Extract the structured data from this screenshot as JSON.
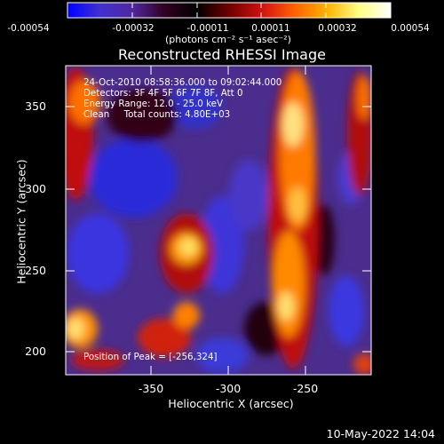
{
  "colorbar": {
    "ticks": [
      "-0.00054",
      "-0.00032",
      "-0.00011",
      "0.00011",
      "0.00032",
      "0.00054"
    ],
    "units": "(photons cm⁻² s⁻¹ asec⁻²)",
    "colors": [
      "#0000ff",
      "#4030d0",
      "#5028a0",
      "#300020",
      "#000000",
      "#700000",
      "#d01010",
      "#ff6000",
      "#ffb000",
      "#ffff80",
      "#ffffff"
    ]
  },
  "image": {
    "title": "Reconstructed RHESSI Image",
    "annotations": [
      "24-Oct-2010 08:58:36.000 to 09:02:44.000",
      "Detectors: 3F 4F 5F 6F 7F 8F, Att 0",
      "Energy Range: 12.0 - 25.0 keV",
      "Clean     Total counts: 4.80E+03"
    ],
    "peak_label": "Position of Peak = [-256,324]",
    "xlabel": "Heliocentric X (arcsec)",
    "ylabel": "Heliocentric Y (arcsec)",
    "xticks": [
      "-350",
      "-300",
      "-250"
    ],
    "yticks": [
      "350",
      "300",
      "250",
      "200"
    ]
  },
  "footer": {
    "date": "10-May-2022 14:04"
  }
}
